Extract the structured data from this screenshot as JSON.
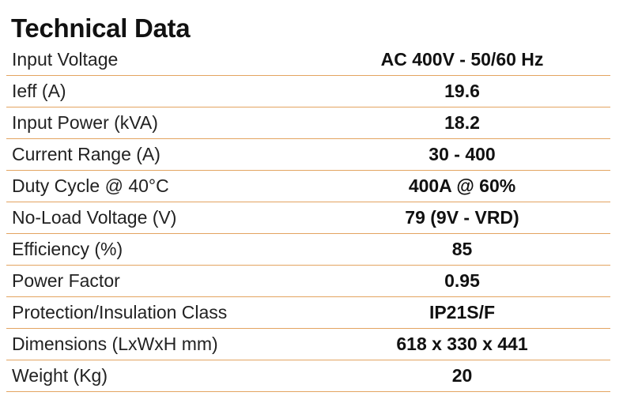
{
  "title": "Technical Data",
  "rows": [
    {
      "label": "Input Voltage",
      "value": "AC 400V - 50/60 Hz"
    },
    {
      "label": "Ieff (A)",
      "value": "19.6"
    },
    {
      "label": "Input Power (kVA)",
      "value": "18.2"
    },
    {
      "label": "Current Range (A)",
      "value": "30 - 400"
    },
    {
      "label": "Duty Cycle @ 40°C",
      "value": "400A @ 60%"
    },
    {
      "label": "No-Load Voltage (V)",
      "value": "79 (9V - VRD)"
    },
    {
      "label": "Efficiency (%)",
      "value": "85"
    },
    {
      "label": "Power Factor",
      "value": "0.95"
    },
    {
      "label": "Protection/Insulation Class",
      "value": "IP21S/F"
    },
    {
      "label": "Dimensions (LxWxH mm)",
      "value": "618 x 330 x 441"
    },
    {
      "label": "Weight (Kg)",
      "value": "20"
    }
  ],
  "colors": {
    "divider": "#e3a461",
    "text": "#111111"
  }
}
